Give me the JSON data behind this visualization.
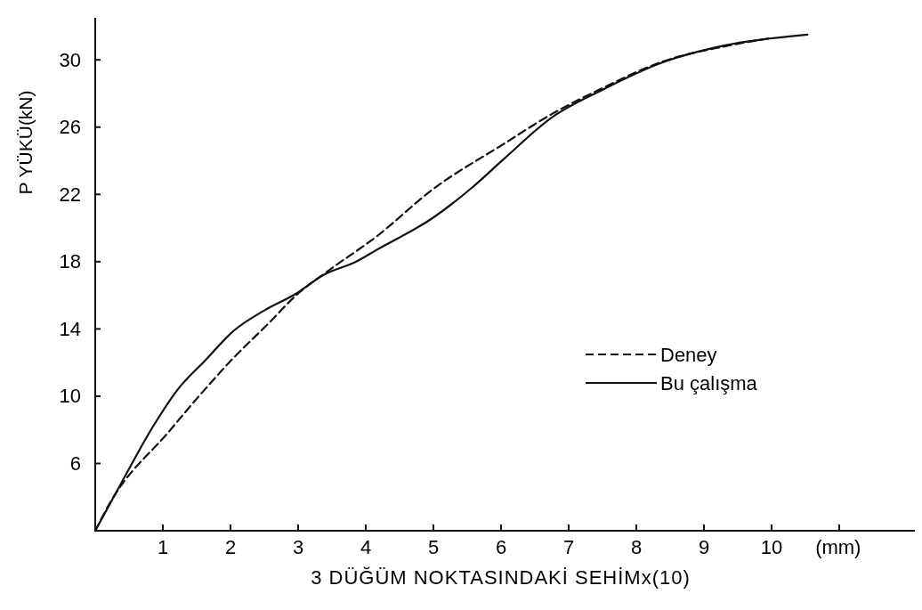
{
  "chart_data": {
    "type": "line",
    "xlabel": "3 DÜĞÜM NOKTASINDAKİ SEHİMx(10)",
    "ylabel": "P YÜKÜ(kN)",
    "annotations": [
      "(mm)"
    ],
    "xlim": [
      0,
      12.3
    ],
    "ylim": [
      2,
      32.5
    ],
    "xticks": [
      1,
      2,
      3,
      4,
      5,
      6,
      7,
      8,
      9,
      10,
      {
        "value": 11,
        "label": null
      }
    ],
    "yticks": [
      {
        "value": 2,
        "label": null
      },
      6,
      10,
      14,
      18,
      22,
      26,
      30
    ],
    "grid": false,
    "legend": "right",
    "marker": "none",
    "series": [
      {
        "name": "Deney",
        "color": "#111111",
        "line_style": "dashed",
        "x": [
          0,
          0.21,
          1.09,
          1.62,
          2.05,
          2.58,
          2.97,
          3.46,
          4.16,
          4.99,
          6.04,
          6.76,
          7.49,
          8.39,
          9.3,
          10.0
        ],
        "values": [
          2,
          3.6,
          7.9,
          10.4,
          12.3,
          14.4,
          16.0,
          17.5,
          19.5,
          22.3,
          25.0,
          26.8,
          28.3,
          29.9,
          30.8,
          31.3
        ]
      },
      {
        "name": "Bu çalışma",
        "color": "#111111",
        "line_style": "solid",
        "x": [
          0,
          0.34,
          0.87,
          1.22,
          1.62,
          2.05,
          2.5,
          2.97,
          3.37,
          3.86,
          4.16,
          4.99,
          5.57,
          6.04,
          6.76,
          7.49,
          8.39,
          9.3,
          10.53
        ],
        "values": [
          2,
          4.5,
          8.3,
          10.4,
          12.1,
          13.9,
          15.1,
          16.1,
          17.2,
          18.0,
          18.7,
          20.6,
          22.4,
          24.1,
          26.6,
          28.2,
          29.85,
          30.85,
          31.5
        ]
      }
    ]
  }
}
